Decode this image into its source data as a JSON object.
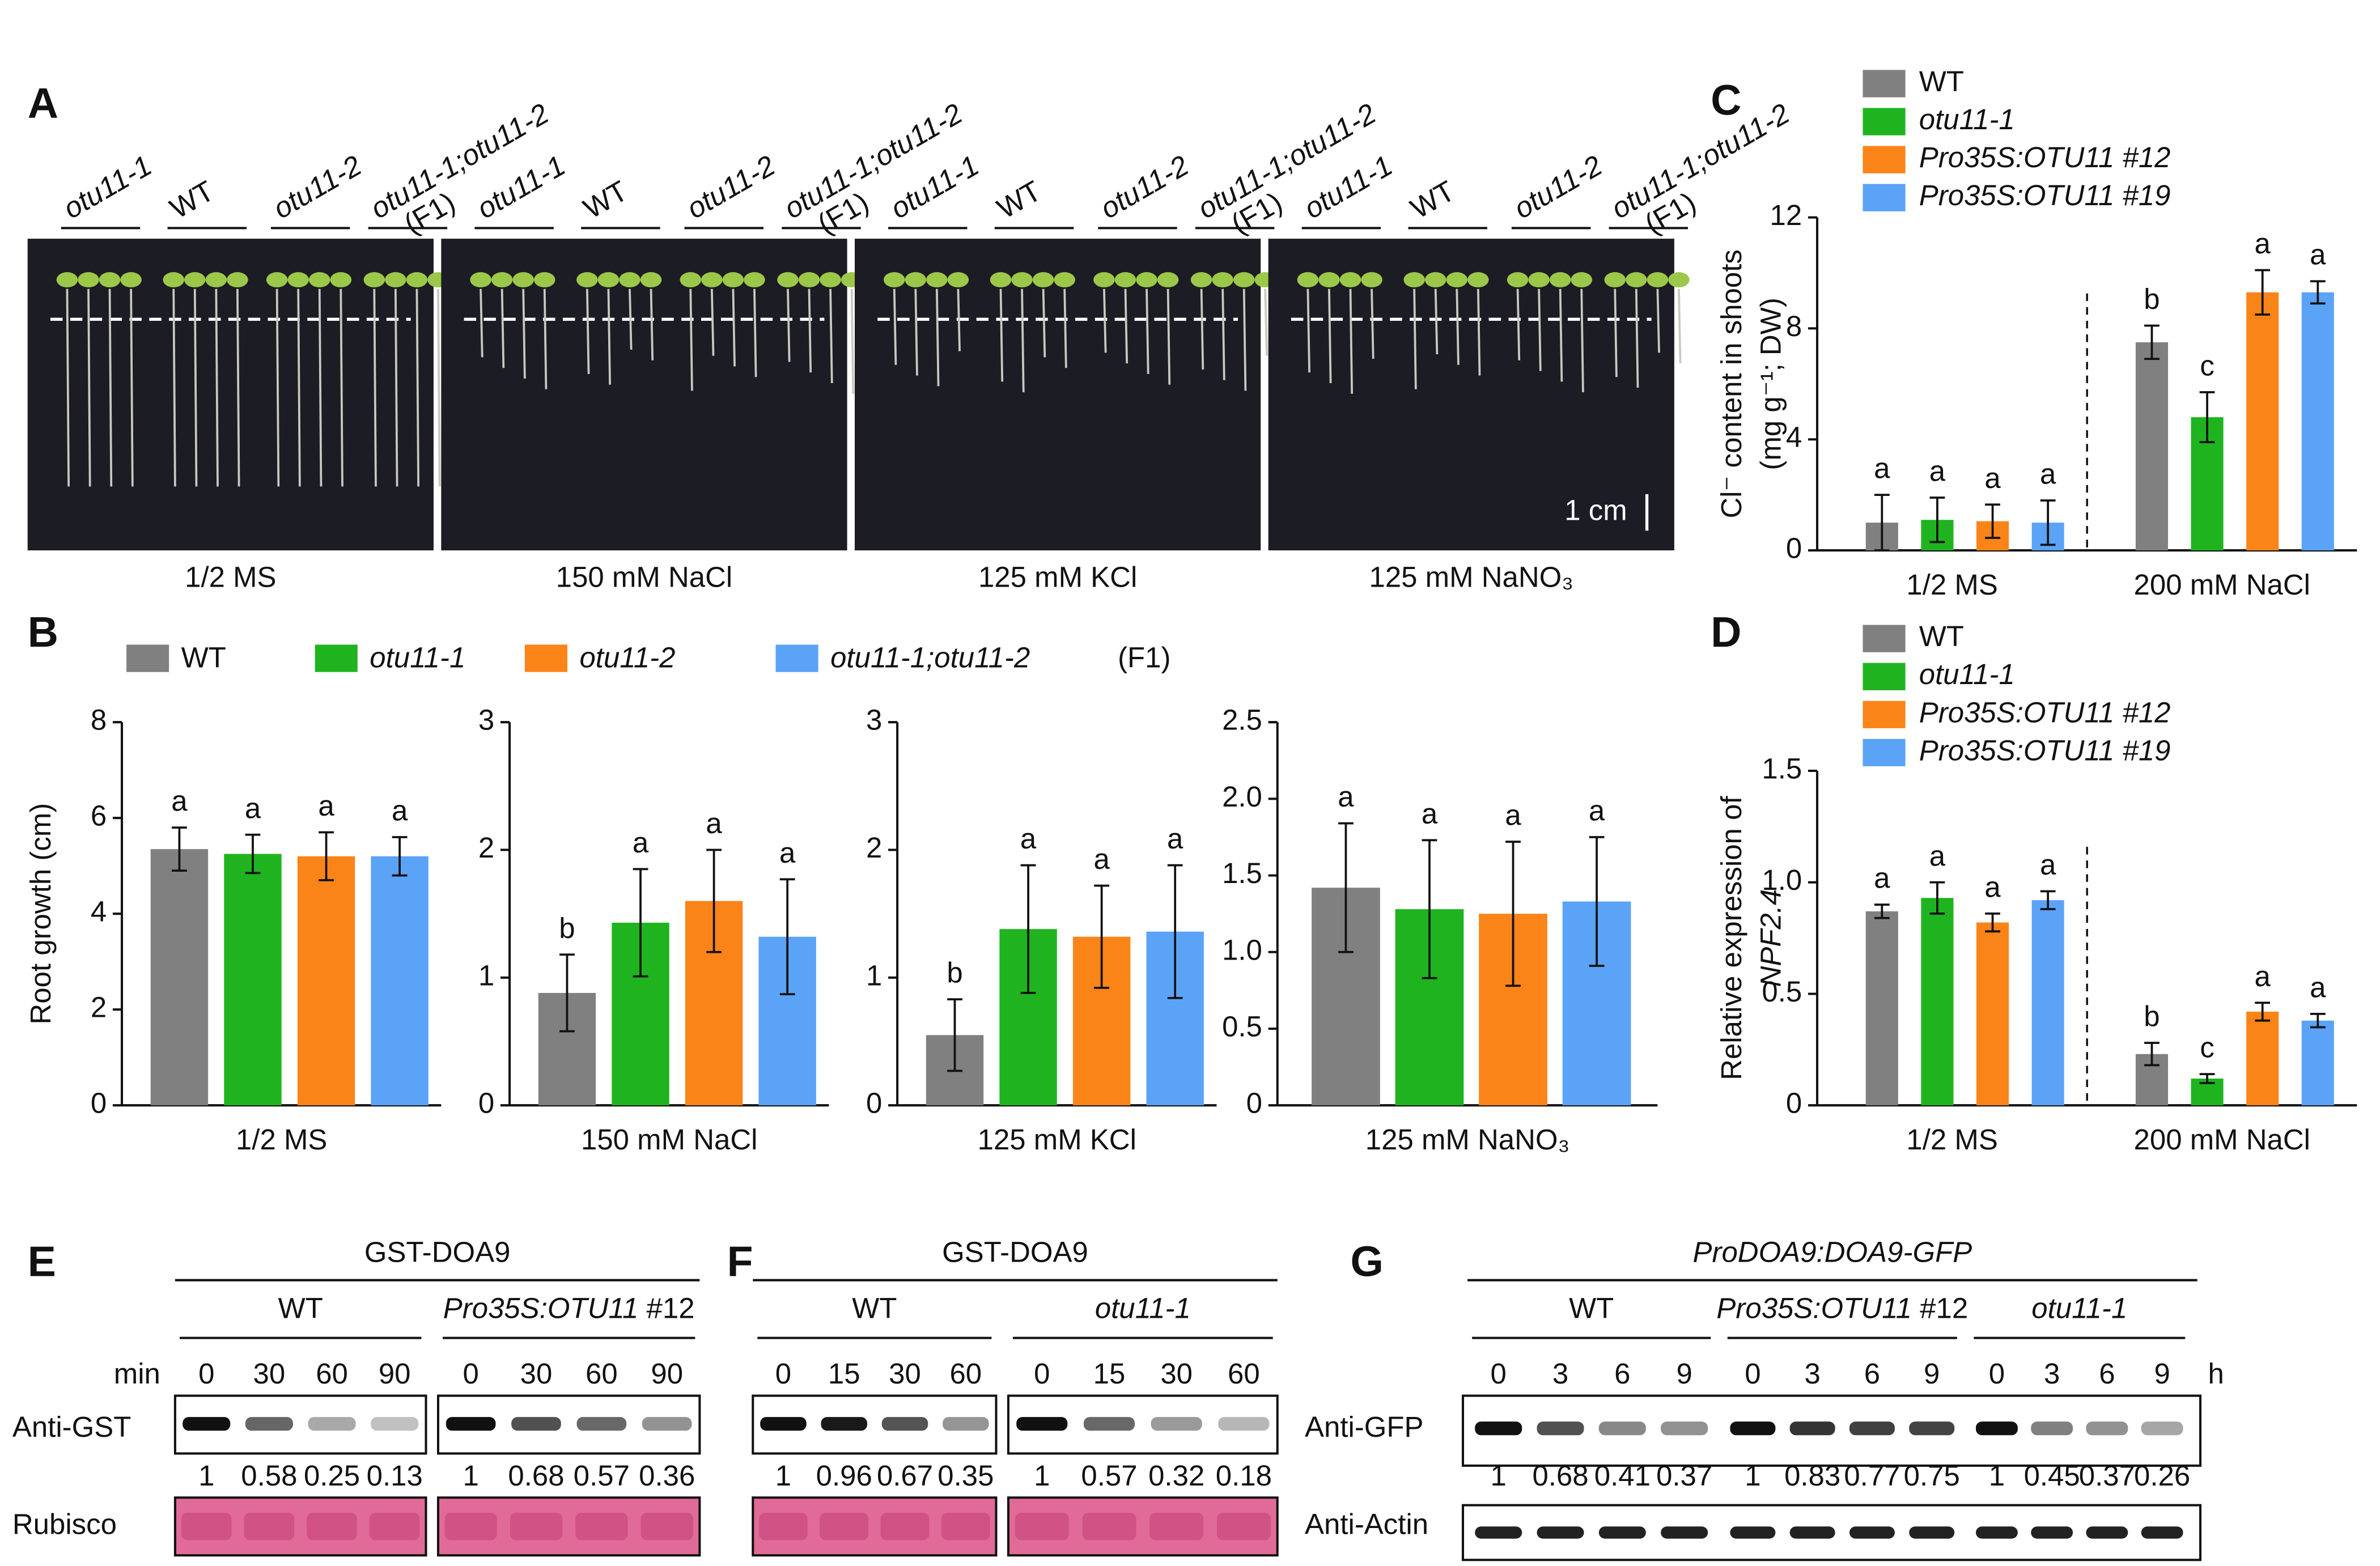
{
  "panel_a": {
    "label": "A",
    "genotypes": [
      "otu11-1",
      "WT",
      "otu11-2",
      "otu11-1;otu11-2"
    ],
    "f1_label": "(F1)",
    "conditions": [
      "1/2 MS",
      "150 mM NaCl",
      "125 mM KCl",
      "125 mM NaNO₃"
    ],
    "scale_bar": "1 cm"
  },
  "chart_data": [
    {
      "type": "bar",
      "label": "B",
      "y_label": [
        "Root growth (cm)"
      ],
      "legend": "top",
      "legend_suffix": "(F1)",
      "categories": [
        "1/2 MS"
      ],
      "ylim": [
        0,
        8
      ],
      "yticks": [
        0,
        2,
        4,
        6,
        8
      ],
      "series": [
        {
          "name": "WT",
          "color": "#808080",
          "values": [
            5.35
          ],
          "errors": [
            0.45
          ],
          "letters": [
            "a"
          ]
        },
        {
          "name": "otu11-1",
          "color": "#1fb41f",
          "values": [
            5.25
          ],
          "errors": [
            0.4
          ],
          "letters": [
            "a"
          ]
        },
        {
          "name": "otu11-2",
          "color": "#fb8419",
          "values": [
            5.2
          ],
          "errors": [
            0.5
          ],
          "letters": [
            "a"
          ]
        },
        {
          "name": "otu11-1;otu11-2",
          "color": "#5ba3f7",
          "values": [
            5.2
          ],
          "errors": [
            0.4
          ],
          "letters": [
            "a"
          ]
        }
      ]
    },
    {
      "type": "bar",
      "categories": [
        "150 mM NaCl"
      ],
      "ylim": [
        0,
        3
      ],
      "yticks": [
        0,
        1,
        2,
        3
      ],
      "series": [
        {
          "name": "WT",
          "color": "#808080",
          "values": [
            0.88
          ],
          "errors": [
            0.3
          ],
          "letters": [
            "b"
          ]
        },
        {
          "name": "otu11-1",
          "color": "#1fb41f",
          "values": [
            1.43
          ],
          "errors": [
            0.42
          ],
          "letters": [
            "a"
          ]
        },
        {
          "name": "otu11-2",
          "color": "#fb8419",
          "values": [
            1.6
          ],
          "errors": [
            0.4
          ],
          "letters": [
            "a"
          ]
        },
        {
          "name": "otu11-1;otu11-2",
          "color": "#5ba3f7",
          "values": [
            1.32
          ],
          "errors": [
            0.45
          ],
          "letters": [
            "a"
          ]
        }
      ]
    },
    {
      "type": "bar",
      "categories": [
        "125 mM KCl"
      ],
      "ylim": [
        0,
        3
      ],
      "yticks": [
        0,
        1,
        2,
        3
      ],
      "series": [
        {
          "name": "WT",
          "color": "#808080",
          "values": [
            0.55
          ],
          "errors": [
            0.28
          ],
          "letters": [
            "b"
          ]
        },
        {
          "name": "otu11-1",
          "color": "#1fb41f",
          "values": [
            1.38
          ],
          "errors": [
            0.5
          ],
          "letters": [
            "a"
          ]
        },
        {
          "name": "otu11-2",
          "color": "#fb8419",
          "values": [
            1.32
          ],
          "errors": [
            0.4
          ],
          "letters": [
            "a"
          ]
        },
        {
          "name": "otu11-1;otu11-2",
          "color": "#5ba3f7",
          "values": [
            1.36
          ],
          "errors": [
            0.52
          ],
          "letters": [
            "a"
          ]
        }
      ]
    },
    {
      "type": "bar",
      "categories": [
        "125 mM NaNO₃"
      ],
      "ylim": [
        0,
        2.5
      ],
      "yticks": [
        0,
        0.5,
        {
          "value": 1,
          "label": "1.0"
        },
        1.5,
        {
          "value": 2,
          "label": "2.0"
        },
        2.5
      ],
      "series": [
        {
          "name": "WT",
          "color": "#808080",
          "values": [
            1.42
          ],
          "errors": [
            0.42
          ],
          "letters": [
            "a"
          ]
        },
        {
          "name": "otu11-1",
          "color": "#1fb41f",
          "values": [
            1.28
          ],
          "errors": [
            0.45
          ],
          "letters": [
            "a"
          ]
        },
        {
          "name": "otu11-2",
          "color": "#fb8419",
          "values": [
            1.25
          ],
          "errors": [
            0.47
          ],
          "letters": [
            "a"
          ]
        },
        {
          "name": "otu11-1;otu11-2",
          "color": "#5ba3f7",
          "values": [
            1.33
          ],
          "errors": [
            0.42
          ],
          "letters": [
            "a"
          ]
        }
      ]
    },
    {
      "type": "bar",
      "label": "C",
      "y_label": [
        "Cl⁻ content in shoots",
        "(mg g⁻¹; DW)"
      ],
      "legend": "top-left",
      "categories": [
        "1/2 MS",
        "200 mM NaCl"
      ],
      "ylim": [
        0,
        12
      ],
      "yticks": [
        0,
        4,
        8,
        12
      ],
      "series": [
        {
          "name": "WT",
          "color": "#808080",
          "values": [
            1.0,
            7.5
          ],
          "errors": [
            1.0,
            0.6
          ],
          "letters": [
            "a",
            "b"
          ]
        },
        {
          "name": "otu11-1",
          "color": "#1fb41f",
          "values": [
            1.1,
            4.8
          ],
          "errors": [
            0.8,
            0.9
          ],
          "letters": [
            "a",
            "c"
          ]
        },
        {
          "name": "Pro35S:OTU11 #12",
          "color": "#fb8419",
          "values": [
            1.05,
            9.3
          ],
          "errors": [
            0.6,
            0.8
          ],
          "letters": [
            "a",
            "a"
          ]
        },
        {
          "name": "Pro35S:OTU11 #19",
          "color": "#5ba3f7",
          "values": [
            1.0,
            9.3
          ],
          "errors": [
            0.8,
            0.4
          ],
          "letters": [
            "a",
            "a"
          ]
        }
      ]
    },
    {
      "type": "bar",
      "label": "D",
      "y_label": [
        "Relative expression of",
        "NPF2.4"
      ],
      "legend": "top-left",
      "categories": [
        "1/2 MS",
        "200 mM NaCl"
      ],
      "ylim": [
        0,
        1.5
      ],
      "yticks": [
        0,
        0.5,
        {
          "value": 1,
          "label": "1.0"
        },
        1.5
      ],
      "series": [
        {
          "name": "WT",
          "color": "#808080",
          "values": [
            0.87,
            0.23
          ],
          "errors": [
            0.03,
            0.05
          ],
          "letters": [
            "a",
            "b"
          ]
        },
        {
          "name": "otu11-1",
          "color": "#1fb41f",
          "values": [
            0.93,
            0.12
          ],
          "errors": [
            0.07,
            0.02
          ],
          "letters": [
            "a",
            "c"
          ]
        },
        {
          "name": "Pro35S:OTU11 #12",
          "color": "#fb8419",
          "values": [
            0.82,
            0.42
          ],
          "errors": [
            0.04,
            0.04
          ],
          "letters": [
            "a",
            "a"
          ]
        },
        {
          "name": "Pro35S:OTU11 #19",
          "color": "#5ba3f7",
          "values": [
            0.92,
            0.38
          ],
          "errors": [
            0.04,
            0.03
          ],
          "letters": [
            "a",
            "a"
          ]
        }
      ]
    }
  ],
  "blots": [
    {
      "label": "E",
      "protein": "GST-DOA9",
      "unit": "min",
      "antibody": "Anti-GST",
      "loading": "Rubisco",
      "groups": [
        {
          "genotype": "WT",
          "times": [
            0,
            30,
            60,
            90
          ],
          "quantities": [
            1,
            0.58,
            0.25,
            0.13
          ]
        },
        {
          "genotype": "Pro35S:OTU11",
          "suffix": "#12",
          "times": [
            0,
            30,
            60,
            90
          ],
          "quantities": [
            1,
            0.68,
            0.57,
            0.36
          ]
        }
      ]
    },
    {
      "label": "F",
      "protein": "GST-DOA9",
      "groups": [
        {
          "genotype": "WT",
          "times": [
            0,
            15,
            30,
            60
          ],
          "quantities": [
            1,
            0.96,
            0.67,
            0.35
          ]
        },
        {
          "genotype": "otu11-1",
          "times": [
            0,
            15,
            30,
            60
          ],
          "quantities": [
            1,
            0.57,
            0.32,
            0.18
          ]
        }
      ]
    },
    {
      "label": "G",
      "protein": "ProDOA9:DOA9-GFP",
      "unit": "h",
      "antibody": "Anti-GFP",
      "loading": "Anti-Actin",
      "groups": [
        {
          "genotype": "WT",
          "times": [
            0,
            3,
            6,
            9
          ],
          "quantities": [
            1,
            0.68,
            0.41,
            0.37
          ]
        },
        {
          "genotype": "Pro35S:OTU11",
          "suffix": "#12",
          "times": [
            0,
            3,
            6,
            9
          ],
          "quantities": [
            1,
            0.83,
            0.77,
            0.75
          ]
        },
        {
          "genotype": "otu11-1",
          "times": [
            0,
            3,
            6,
            9
          ],
          "quantities": [
            1,
            0.45,
            0.37,
            0.26
          ]
        }
      ]
    }
  ]
}
